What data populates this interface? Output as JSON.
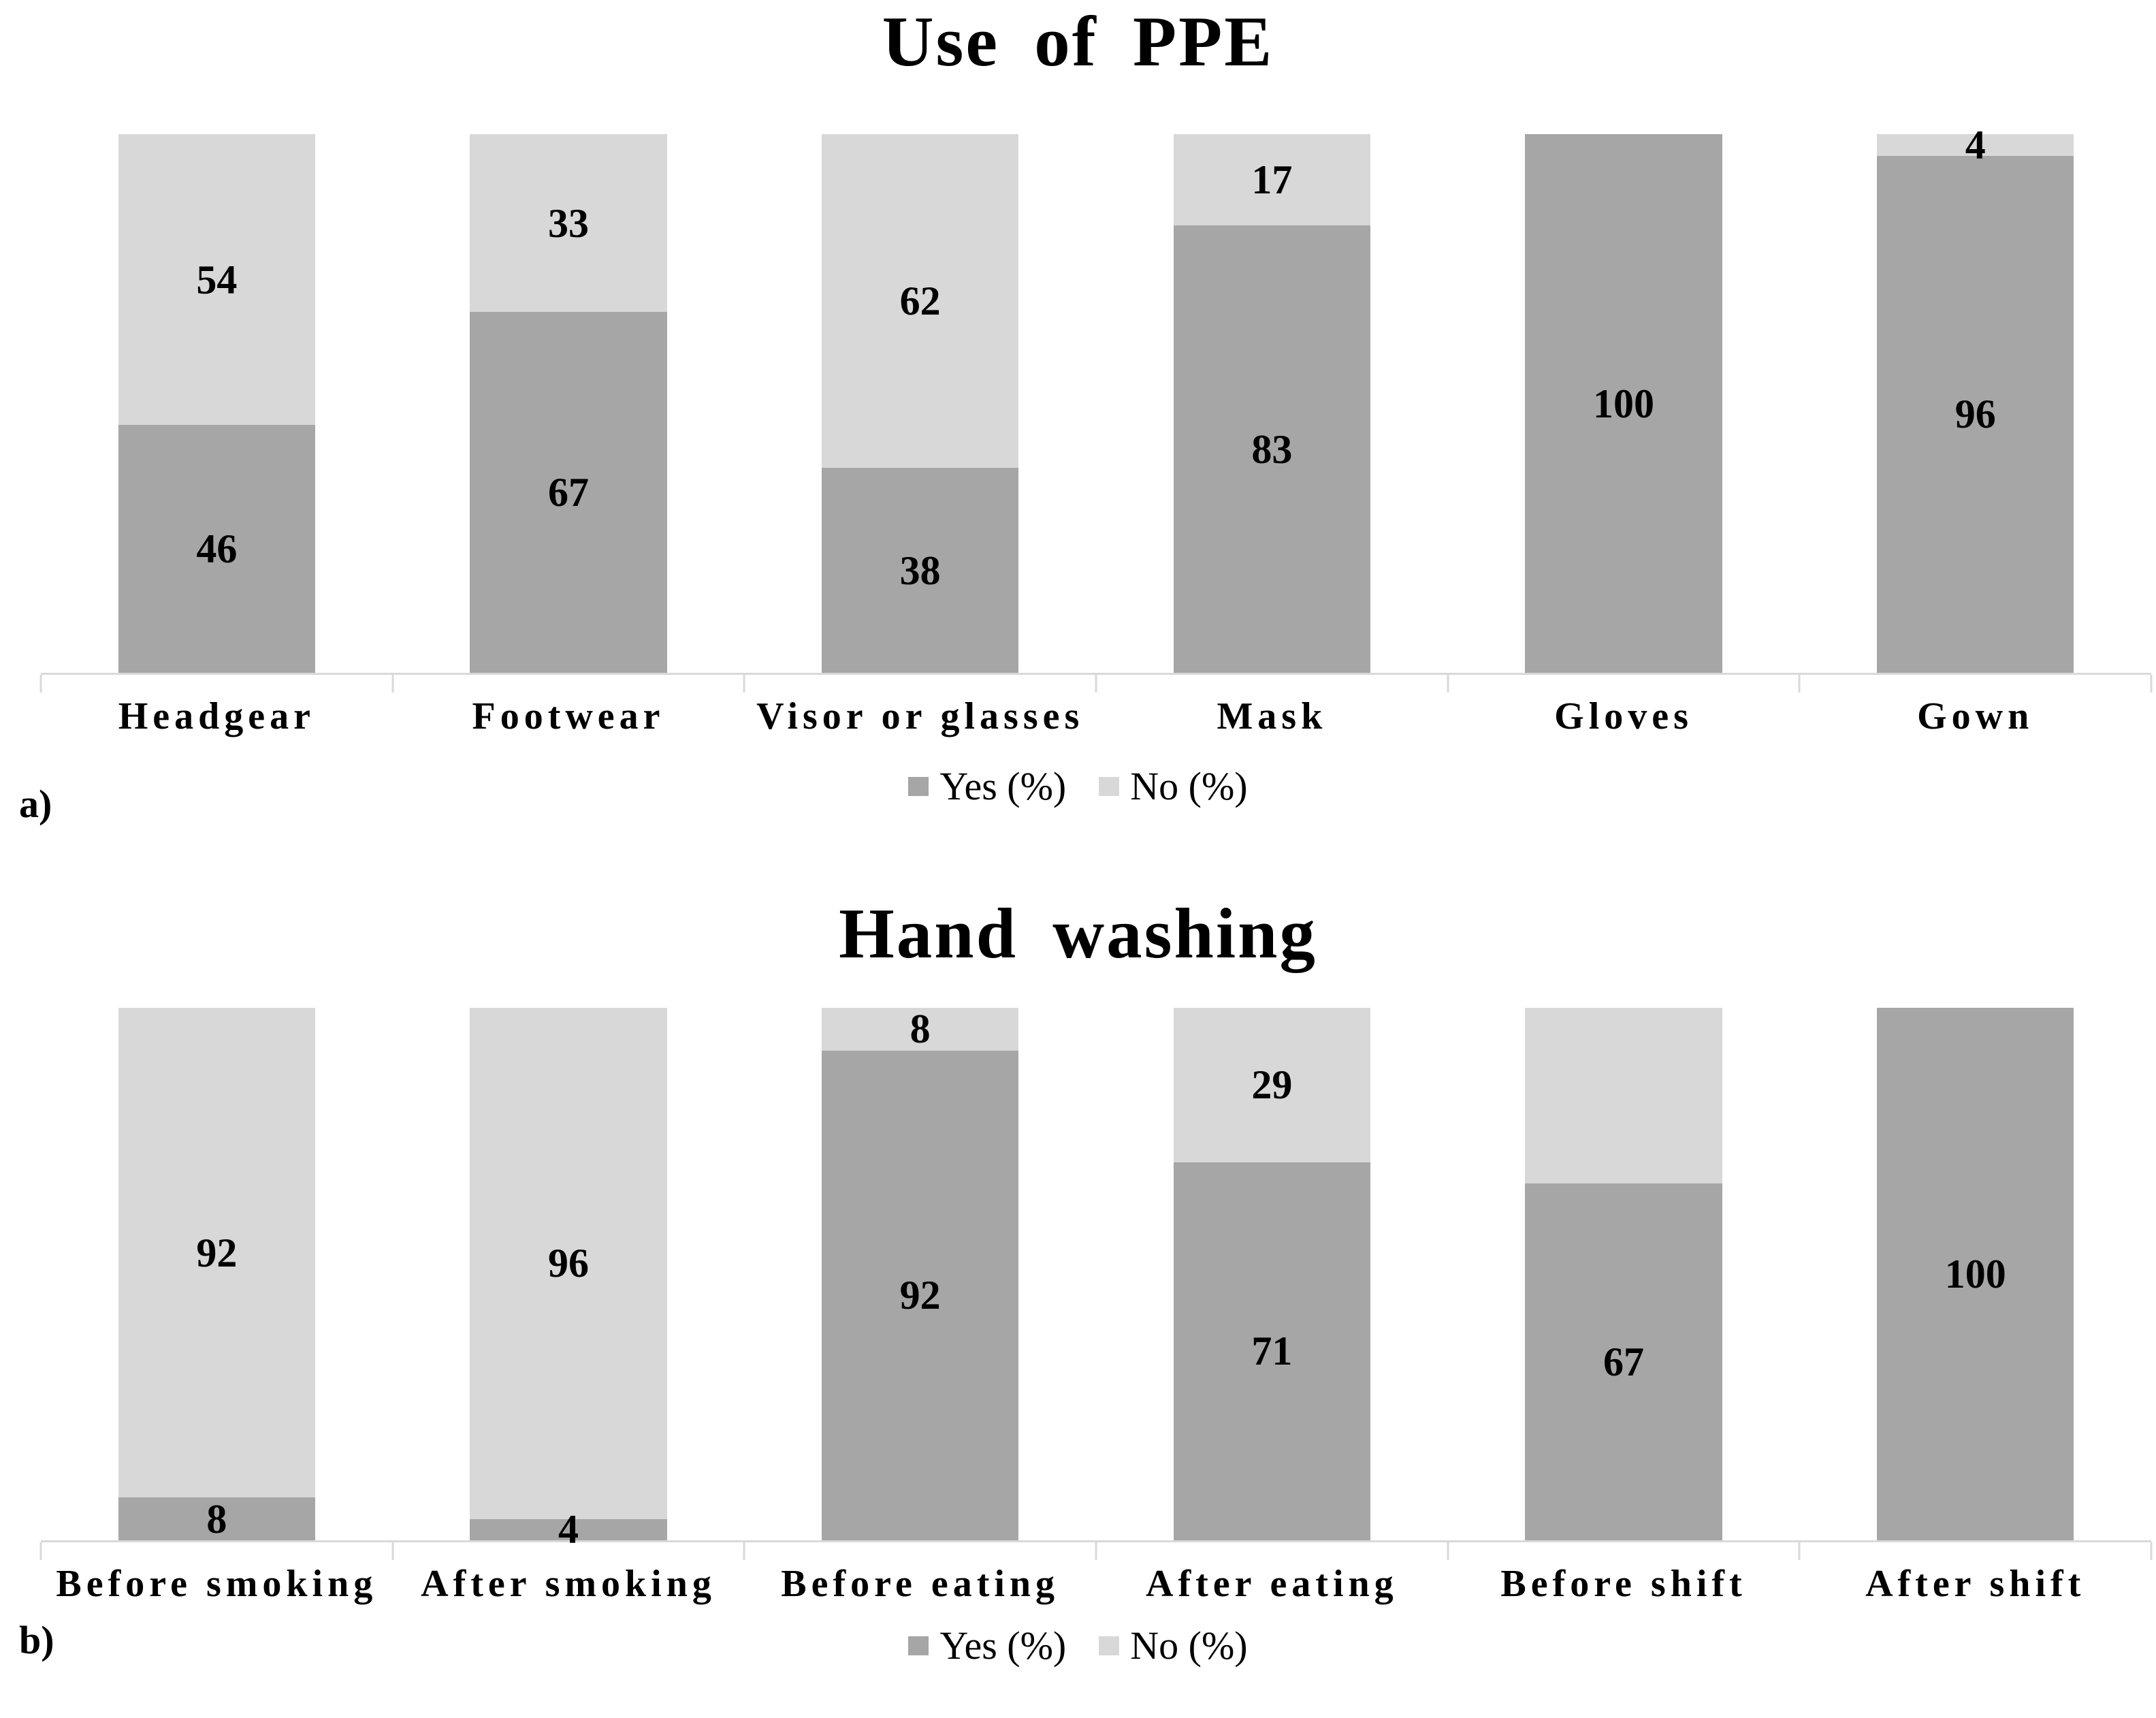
{
  "figure_title": "",
  "colors": {
    "yes_series": "#a6a6a6",
    "no_series": "#d8d8d8",
    "axis": "#d9d9d9",
    "text": "#000000",
    "background": "#ffffff"
  },
  "chart_data": [
    {
      "type": "bar",
      "stacked": true,
      "orientation": "vertical",
      "title": "Use of PPE",
      "panel_label": "a)",
      "categories": [
        "Headgear",
        "Footwear",
        "Visor or glasses",
        "Mask",
        "Gloves",
        "Gown"
      ],
      "series": [
        {
          "name": "Yes (%)",
          "color": "#a6a6a6",
          "values": [
            46,
            67,
            38,
            83,
            100,
            96
          ],
          "labels": [
            "46",
            "67",
            "38",
            "83",
            "100",
            "96"
          ]
        },
        {
          "name": "No (%)",
          "color": "#d8d8d8",
          "values": [
            54,
            33,
            62,
            17,
            0,
            4
          ],
          "labels": [
            "54",
            "33",
            "62",
            "17",
            "",
            "4"
          ]
        }
      ],
      "ylim": [
        0,
        100
      ],
      "grid": false,
      "y_axis_visible": false,
      "legend_position": "bottom-center",
      "legend": [
        {
          "label": "Yes (%)",
          "color": "#a6a6a6"
        },
        {
          "label": "No (%)",
          "color": "#d8d8d8"
        }
      ]
    },
    {
      "type": "bar",
      "stacked": true,
      "orientation": "vertical",
      "title": "Hand washing",
      "panel_label": "b)",
      "categories": [
        "Before smoking",
        "After smoking",
        "Before eating",
        "After eating",
        "Before shift",
        "After shift"
      ],
      "series": [
        {
          "name": "Yes (%)",
          "color": "#a6a6a6",
          "values": [
            8,
            4,
            92,
            71,
            67,
            100
          ],
          "labels": [
            "8",
            "4",
            "92",
            "71",
            "67",
            "100"
          ]
        },
        {
          "name": "No (%)",
          "color": "#d8d8d8",
          "values": [
            92,
            96,
            8,
            29,
            33,
            0
          ],
          "labels": [
            "92",
            "96",
            "8",
            "29",
            "",
            ""
          ]
        }
      ],
      "ylim": [
        0,
        100
      ],
      "grid": false,
      "y_axis_visible": false,
      "legend_position": "bottom-center",
      "legend": [
        {
          "label": "Yes (%)",
          "color": "#a6a6a6"
        },
        {
          "label": "No (%)",
          "color": "#d8d8d8"
        }
      ]
    }
  ]
}
